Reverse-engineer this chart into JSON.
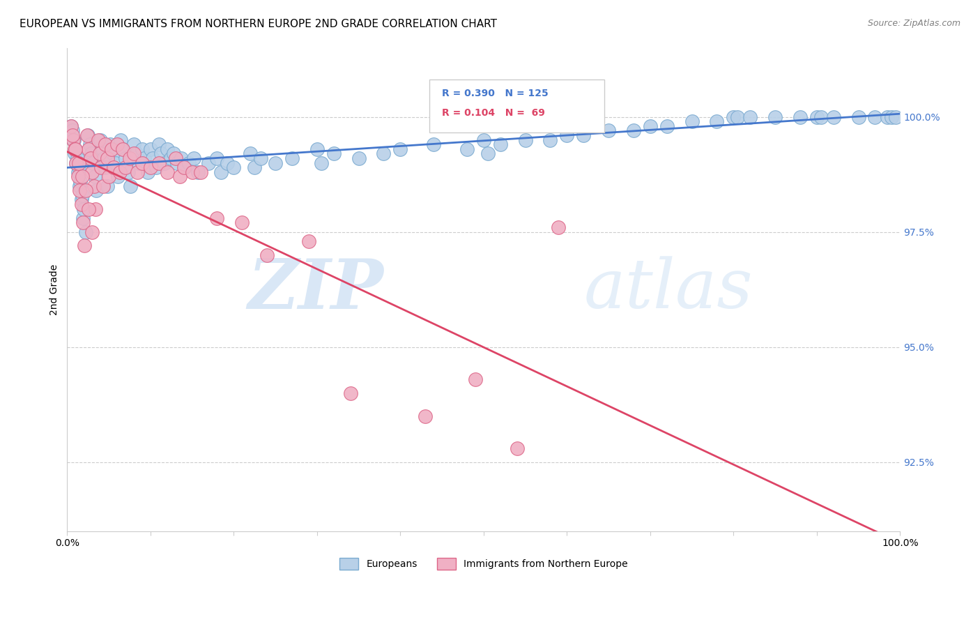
{
  "title": "EUROPEAN VS IMMIGRANTS FROM NORTHERN EUROPE 2ND GRADE CORRELATION CHART",
  "source": "Source: ZipAtlas.com",
  "ylabel": "2nd Grade",
  "y_ticks": [
    92.5,
    95.0,
    97.5,
    100.0
  ],
  "y_tick_labels": [
    "92.5%",
    "95.0%",
    "97.5%",
    "100.0%"
  ],
  "x_ticks": [
    0.0,
    0.1,
    0.2,
    0.3,
    0.4,
    0.5,
    0.6,
    0.7,
    0.8,
    0.9,
    1.0
  ],
  "xlim": [
    0.0,
    1.0
  ],
  "ylim": [
    91.0,
    101.5
  ],
  "legend_labels": [
    "Europeans",
    "Immigrants from Northern Europe"
  ],
  "r_european": 0.39,
  "n_european": 125,
  "r_immigrant": 0.104,
  "n_immigrant": 69,
  "trend_color_european": "#4477cc",
  "trend_color_immigrant": "#dd4466",
  "dot_color_european": "#b8d0e8",
  "dot_border_european": "#7aaad0",
  "dot_color_immigrant": "#f0b0c4",
  "dot_border_immigrant": "#dd6688",
  "watermark_zip": "ZIP",
  "watermark_atlas": "atlas",
  "title_fontsize": 11,
  "source_fontsize": 9,
  "euro_x": [
    0.005,
    0.007,
    0.009,
    0.011,
    0.013,
    0.015,
    0.017,
    0.019,
    0.006,
    0.008,
    0.01,
    0.012,
    0.014,
    0.016,
    0.018,
    0.02,
    0.022,
    0.025,
    0.027,
    0.029,
    0.031,
    0.033,
    0.035,
    0.04,
    0.042,
    0.044,
    0.046,
    0.048,
    0.052,
    0.055,
    0.058,
    0.061,
    0.064,
    0.067,
    0.07,
    0.073,
    0.076,
    0.08,
    0.083,
    0.086,
    0.09,
    0.093,
    0.097,
    0.1,
    0.103,
    0.107,
    0.11,
    0.113,
    0.117,
    0.12,
    0.124,
    0.128,
    0.132,
    0.137,
    0.141,
    0.146,
    0.152,
    0.157,
    0.17,
    0.18,
    0.185,
    0.192,
    0.2,
    0.22,
    0.225,
    0.232,
    0.25,
    0.27,
    0.3,
    0.305,
    0.32,
    0.35,
    0.38,
    0.4,
    0.44,
    0.48,
    0.5,
    0.505,
    0.52,
    0.55,
    0.58,
    0.6,
    0.62,
    0.65,
    0.68,
    0.7,
    0.72,
    0.75,
    0.78,
    0.8,
    0.805,
    0.82,
    0.85,
    0.88,
    0.9,
    0.905,
    0.92,
    0.95,
    0.97,
    0.985,
    0.99,
    0.995
  ],
  "euro_y": [
    99.8,
    99.5,
    99.2,
    99.0,
    98.8,
    98.5,
    98.2,
    97.8,
    99.7,
    99.5,
    99.3,
    99.1,
    98.9,
    98.6,
    98.3,
    98.0,
    97.5,
    99.6,
    99.4,
    99.2,
    99.0,
    98.7,
    98.4,
    99.5,
    99.3,
    99.1,
    98.9,
    98.5,
    99.4,
    99.2,
    99.0,
    98.7,
    99.5,
    99.3,
    99.1,
    98.8,
    98.5,
    99.4,
    99.2,
    99.0,
    99.3,
    99.1,
    98.8,
    99.3,
    99.1,
    98.9,
    99.4,
    99.2,
    99.0,
    99.3,
    99.1,
    99.2,
    99.0,
    99.1,
    98.9,
    99.0,
    99.1,
    98.8,
    99.0,
    99.1,
    98.8,
    99.0,
    98.9,
    99.2,
    98.9,
    99.1,
    99.0,
    99.1,
    99.3,
    99.0,
    99.2,
    99.1,
    99.2,
    99.3,
    99.4,
    99.3,
    99.5,
    99.2,
    99.4,
    99.5,
    99.5,
    99.6,
    99.6,
    99.7,
    99.7,
    99.8,
    99.8,
    99.9,
    99.9,
    100.0,
    100.0,
    100.0,
    100.0,
    100.0,
    100.0,
    100.0,
    100.0,
    100.0,
    100.0,
    100.0,
    100.0,
    100.0
  ],
  "immig_x": [
    0.005,
    0.007,
    0.009,
    0.011,
    0.013,
    0.015,
    0.017,
    0.019,
    0.021,
    0.024,
    0.026,
    0.028,
    0.03,
    0.032,
    0.034,
    0.037,
    0.039,
    0.041,
    0.043,
    0.046,
    0.048,
    0.05,
    0.053,
    0.056,
    0.06,
    0.063,
    0.067,
    0.07,
    0.075,
    0.08,
    0.084,
    0.09,
    0.1,
    0.11,
    0.12,
    0.13,
    0.135,
    0.14,
    0.15,
    0.16,
    0.18,
    0.21,
    0.24,
    0.29,
    0.34,
    0.43,
    0.49,
    0.54,
    0.59,
    0.006,
    0.01,
    0.014,
    0.018,
    0.022,
    0.026,
    0.03
  ],
  "immig_y": [
    99.8,
    99.5,
    99.3,
    99.0,
    98.7,
    98.4,
    98.1,
    97.7,
    97.2,
    99.6,
    99.3,
    99.1,
    98.8,
    98.5,
    98.0,
    99.5,
    99.2,
    98.9,
    98.5,
    99.4,
    99.1,
    98.7,
    99.3,
    98.9,
    99.4,
    98.8,
    99.3,
    98.9,
    99.1,
    99.2,
    98.8,
    99.0,
    98.9,
    99.0,
    98.8,
    99.1,
    98.7,
    98.9,
    98.8,
    98.8,
    97.8,
    97.7,
    97.0,
    97.3,
    94.0,
    93.5,
    94.3,
    92.8,
    97.6,
    99.6,
    99.3,
    99.0,
    98.7,
    98.4,
    98.0,
    97.5
  ]
}
